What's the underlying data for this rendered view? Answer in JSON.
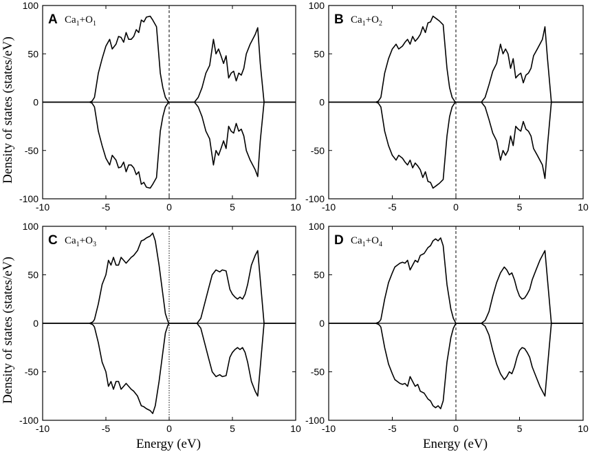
{
  "figure": {
    "ylabel": "Density of states (states/eV)",
    "xlabel": "Energy (eV)"
  },
  "chart_data": [
    {
      "type": "line",
      "panel": "A",
      "label_parts": [
        "Ca",
        "1",
        "+O",
        "1"
      ],
      "xlim": [
        -10,
        10
      ],
      "ylim": [
        -100,
        100
      ],
      "xticks": [
        -10,
        -5,
        0,
        5,
        10
      ],
      "yticks": [
        -100,
        -50,
        0,
        50,
        100
      ],
      "fermi_level": 0,
      "fermi_style": "dashed",
      "series": [
        {
          "x": [
            -10,
            -6.3,
            -6.1,
            -6.0,
            -5.9,
            -5.6,
            -5.3,
            -5.0,
            -4.7,
            -4.5,
            -4.2,
            -4.0,
            -3.8,
            -3.6,
            -3.4,
            -3.2,
            -3.0,
            -2.8,
            -2.6,
            -2.4,
            -2.2,
            -2.0,
            -1.8,
            -1.5,
            -1.3,
            -1.0,
            -0.7,
            -0.5,
            -0.3,
            -0.1,
            0,
            0.5,
            1.0,
            2.0,
            2.3,
            2.6,
            2.9,
            3.2,
            3.5,
            3.7,
            3.9,
            4.1,
            4.3,
            4.5,
            4.7,
            4.9,
            5.1,
            5.3,
            5.5,
            5.7,
            5.9,
            6.1,
            6.4,
            6.8,
            7.0,
            7.2,
            7.5,
            10
          ],
          "y": [
            0,
            0,
            1,
            3,
            5,
            30,
            45,
            58,
            65,
            55,
            60,
            68,
            67,
            62,
            72,
            65,
            65,
            68,
            75,
            72,
            85,
            83,
            88,
            89,
            85,
            78,
            30,
            15,
            5,
            1,
            0,
            0,
            0,
            0,
            5,
            15,
            30,
            38,
            65,
            50,
            55,
            48,
            40,
            48,
            25,
            30,
            32,
            22,
            30,
            28,
            35,
            50,
            60,
            70,
            77,
            40,
            0,
            0
          ]
        },
        {
          "x": [
            -10,
            -6.3,
            -6.1,
            -6.0,
            -5.9,
            -5.6,
            -5.3,
            -5.0,
            -4.7,
            -4.5,
            -4.2,
            -4.0,
            -3.8,
            -3.6,
            -3.4,
            -3.2,
            -3.0,
            -2.8,
            -2.6,
            -2.4,
            -2.2,
            -2.0,
            -1.8,
            -1.5,
            -1.3,
            -1.0,
            -0.7,
            -0.5,
            -0.3,
            -0.1,
            0,
            0.5,
            1.0,
            2.0,
            2.3,
            2.6,
            2.9,
            3.2,
            3.5,
            3.7,
            3.9,
            4.1,
            4.3,
            4.5,
            4.7,
            4.9,
            5.1,
            5.3,
            5.5,
            5.7,
            5.9,
            6.1,
            6.4,
            6.8,
            7.0,
            7.2,
            7.5,
            10
          ],
          "y": [
            0,
            0,
            -1,
            -3,
            -5,
            -30,
            -45,
            -58,
            -65,
            -55,
            -60,
            -68,
            -67,
            -62,
            -72,
            -65,
            -65,
            -68,
            -75,
            -72,
            -85,
            -83,
            -88,
            -89,
            -85,
            -78,
            -30,
            -15,
            -5,
            -1,
            0,
            0,
            0,
            0,
            -5,
            -15,
            -30,
            -38,
            -65,
            -50,
            -55,
            -48,
            -40,
            -48,
            -25,
            -30,
            -32,
            -22,
            -30,
            -28,
            -35,
            -50,
            -60,
            -70,
            -77,
            -40,
            0,
            0
          ]
        }
      ]
    },
    {
      "type": "line",
      "panel": "B",
      "label_parts": [
        "Ca",
        "1",
        "+O",
        "2"
      ],
      "xlim": [
        -10,
        10
      ],
      "ylim": [
        -100,
        100
      ],
      "xticks": [
        -10,
        -5,
        0,
        5,
        10
      ],
      "yticks": [
        -100,
        -50,
        0,
        50,
        100
      ],
      "fermi_level": 0,
      "fermi_style": "dashed",
      "series": [
        {
          "x": [
            -10,
            -6.3,
            -6.1,
            -6.0,
            -5.9,
            -5.6,
            -5.3,
            -5.0,
            -4.7,
            -4.5,
            -4.2,
            -4.0,
            -3.8,
            -3.6,
            -3.4,
            -3.2,
            -3.0,
            -2.8,
            -2.6,
            -2.4,
            -2.2,
            -2.0,
            -1.8,
            -1.5,
            -1.3,
            -1.0,
            -0.7,
            -0.5,
            -0.3,
            -0.1,
            0,
            0.5,
            1.0,
            2.0,
            2.3,
            2.6,
            2.9,
            3.2,
            3.5,
            3.7,
            3.9,
            4.1,
            4.3,
            4.5,
            4.7,
            4.9,
            5.1,
            5.3,
            5.5,
            5.7,
            5.9,
            6.1,
            6.4,
            6.8,
            7.0,
            7.2,
            7.5,
            10
          ],
          "y": [
            0,
            0,
            1,
            3,
            5,
            30,
            45,
            55,
            60,
            55,
            58,
            62,
            65,
            60,
            68,
            63,
            66,
            70,
            78,
            72,
            82,
            83,
            89,
            86,
            84,
            80,
            35,
            15,
            5,
            1,
            0,
            0,
            0,
            0,
            5,
            18,
            32,
            40,
            60,
            50,
            55,
            50,
            35,
            45,
            25,
            28,
            30,
            20,
            28,
            30,
            35,
            48,
            55,
            65,
            78,
            45,
            0,
            0
          ]
        },
        {
          "x": [
            -10,
            -6.3,
            -6.1,
            -6.0,
            -5.9,
            -5.6,
            -5.3,
            -5.0,
            -4.7,
            -4.5,
            -4.2,
            -4.0,
            -3.8,
            -3.6,
            -3.4,
            -3.2,
            -3.0,
            -2.8,
            -2.6,
            -2.4,
            -2.2,
            -2.0,
            -1.8,
            -1.5,
            -1.3,
            -1.0,
            -0.7,
            -0.5,
            -0.3,
            -0.1,
            0,
            0.5,
            1.0,
            2.0,
            2.3,
            2.6,
            2.9,
            3.2,
            3.5,
            3.7,
            3.9,
            4.1,
            4.3,
            4.5,
            4.7,
            4.9,
            5.1,
            5.3,
            5.5,
            5.7,
            5.9,
            6.1,
            6.4,
            6.8,
            7.0,
            7.2,
            7.5,
            10
          ],
          "y": [
            0,
            0,
            -1,
            -3,
            -5,
            -30,
            -45,
            -55,
            -60,
            -55,
            -58,
            -62,
            -65,
            -60,
            -68,
            -63,
            -66,
            -70,
            -78,
            -72,
            -82,
            -83,
            -89,
            -86,
            -84,
            -80,
            -35,
            -15,
            -5,
            -1,
            0,
            0,
            0,
            0,
            -5,
            -18,
            -32,
            -40,
            -60,
            -50,
            -55,
            -50,
            -35,
            -45,
            -25,
            -28,
            -30,
            -20,
            -28,
            -30,
            -35,
            -48,
            -55,
            -65,
            -79,
            -45,
            0,
            0
          ]
        }
      ]
    },
    {
      "type": "line",
      "panel": "C",
      "label_parts": [
        "Ca",
        "1",
        "+O",
        "3"
      ],
      "xlim": [
        -10,
        10
      ],
      "ylim": [
        -100,
        100
      ],
      "xticks": [
        -10,
        -5,
        0,
        5,
        10
      ],
      "yticks": [
        -100,
        -50,
        0,
        50,
        100
      ],
      "fermi_level": 0,
      "fermi_style": "dotted",
      "series": [
        {
          "x": [
            -10,
            -6.3,
            -6.1,
            -6.0,
            -5.9,
            -5.6,
            -5.3,
            -5.0,
            -4.8,
            -4.6,
            -4.4,
            -4.2,
            -4.0,
            -3.8,
            -3.6,
            -3.4,
            -3.2,
            -3.0,
            -2.8,
            -2.5,
            -2.2,
            -2.0,
            -1.8,
            -1.5,
            -1.3,
            -1.1,
            -0.8,
            -0.5,
            -0.3,
            -0.1,
            0,
            0.5,
            1.0,
            2.2,
            2.5,
            2.8,
            3.1,
            3.4,
            3.7,
            4.0,
            4.2,
            4.5,
            4.8,
            5.0,
            5.2,
            5.4,
            5.6,
            5.8,
            6.0,
            6.2,
            6.5,
            6.8,
            7.0,
            7.2,
            7.5,
            10
          ],
          "y": [
            0,
            0,
            1,
            2,
            4,
            20,
            40,
            50,
            65,
            60,
            68,
            60,
            60,
            68,
            65,
            62,
            65,
            68,
            70,
            75,
            85,
            86,
            88,
            90,
            93,
            85,
            60,
            30,
            10,
            2,
            0,
            0,
            0,
            0,
            5,
            20,
            35,
            50,
            55,
            53,
            55,
            54,
            35,
            30,
            27,
            25,
            27,
            25,
            30,
            40,
            60,
            70,
            75,
            45,
            0,
            0
          ]
        },
        {
          "x": [
            -10,
            -6.3,
            -6.1,
            -6.0,
            -5.9,
            -5.6,
            -5.3,
            -5.0,
            -4.8,
            -4.6,
            -4.4,
            -4.2,
            -4.0,
            -3.8,
            -3.6,
            -3.4,
            -3.2,
            -3.0,
            -2.8,
            -2.5,
            -2.2,
            -2.0,
            -1.8,
            -1.5,
            -1.3,
            -1.1,
            -0.8,
            -0.5,
            -0.3,
            -0.1,
            0,
            0.5,
            1.0,
            2.2,
            2.5,
            2.8,
            3.1,
            3.4,
            3.7,
            4.0,
            4.2,
            4.5,
            4.8,
            5.0,
            5.2,
            5.4,
            5.6,
            5.8,
            6.0,
            6.2,
            6.5,
            6.8,
            7.0,
            7.2,
            7.5,
            10
          ],
          "y": [
            0,
            0,
            -1,
            -2,
            -4,
            -20,
            -40,
            -50,
            -65,
            -60,
            -68,
            -60,
            -60,
            -68,
            -65,
            -62,
            -65,
            -68,
            -70,
            -75,
            -85,
            -86,
            -88,
            -90,
            -93,
            -85,
            -60,
            -30,
            -10,
            -2,
            0,
            0,
            0,
            0,
            -5,
            -20,
            -35,
            -50,
            -55,
            -53,
            -55,
            -54,
            -35,
            -30,
            -27,
            -25,
            -27,
            -25,
            -30,
            -40,
            -60,
            -70,
            -75,
            -45,
            0,
            0
          ]
        }
      ]
    },
    {
      "type": "line",
      "panel": "D",
      "label_parts": [
        "Ca",
        "1",
        "+O",
        "4"
      ],
      "xlim": [
        -10,
        10
      ],
      "ylim": [
        -100,
        100
      ],
      "xticks": [
        -10,
        -5,
        0,
        5,
        10
      ],
      "yticks": [
        -100,
        -50,
        0,
        50,
        100
      ],
      "fermi_level": 0,
      "fermi_style": "dashed",
      "series": [
        {
          "x": [
            -10,
            -6.3,
            -6.1,
            -6.0,
            -5.9,
            -5.6,
            -5.3,
            -5.0,
            -4.8,
            -4.6,
            -4.4,
            -4.2,
            -4.0,
            -3.8,
            -3.6,
            -3.4,
            -3.2,
            -3.0,
            -2.8,
            -2.5,
            -2.2,
            -2.0,
            -1.8,
            -1.6,
            -1.4,
            -1.2,
            -1.0,
            -0.7,
            -0.4,
            -0.2,
            0,
            0.5,
            1.0,
            2.0,
            2.3,
            2.6,
            2.9,
            3.2,
            3.5,
            3.8,
            4.0,
            4.2,
            4.4,
            4.6,
            4.8,
            5.0,
            5.2,
            5.4,
            5.6,
            5.8,
            6.0,
            6.3,
            6.6,
            7.0,
            7.2,
            7.5,
            10
          ],
          "y": [
            0,
            0,
            1,
            2,
            4,
            25,
            42,
            52,
            58,
            60,
            62,
            63,
            62,
            65,
            55,
            60,
            65,
            63,
            70,
            72,
            78,
            80,
            85,
            87,
            85,
            88,
            80,
            40,
            15,
            5,
            0,
            0,
            0,
            0,
            3,
            12,
            28,
            42,
            52,
            58,
            55,
            50,
            52,
            45,
            35,
            28,
            25,
            26,
            30,
            35,
            45,
            55,
            65,
            75,
            45,
            0,
            0
          ]
        },
        {
          "x": [
            -10,
            -6.3,
            -6.1,
            -6.0,
            -5.9,
            -5.6,
            -5.3,
            -5.0,
            -4.8,
            -4.6,
            -4.4,
            -4.2,
            -4.0,
            -3.8,
            -3.6,
            -3.4,
            -3.2,
            -3.0,
            -2.8,
            -2.5,
            -2.2,
            -2.0,
            -1.8,
            -1.6,
            -1.4,
            -1.2,
            -1.0,
            -0.7,
            -0.4,
            -0.2,
            0,
            0.5,
            1.0,
            2.0,
            2.3,
            2.6,
            2.9,
            3.2,
            3.5,
            3.8,
            4.0,
            4.2,
            4.4,
            4.6,
            4.8,
            5.0,
            5.2,
            5.4,
            5.6,
            5.8,
            6.0,
            6.3,
            6.6,
            7.0,
            7.2,
            7.5,
            10
          ],
          "y": [
            0,
            0,
            -1,
            -2,
            -4,
            -25,
            -42,
            -52,
            -58,
            -60,
            -62,
            -63,
            -62,
            -65,
            -55,
            -60,
            -65,
            -63,
            -70,
            -72,
            -78,
            -80,
            -85,
            -87,
            -85,
            -88,
            -80,
            -40,
            -15,
            -5,
            0,
            0,
            0,
            0,
            -3,
            -12,
            -28,
            -42,
            -52,
            -58,
            -55,
            -50,
            -52,
            -45,
            -35,
            -28,
            -25,
            -26,
            -30,
            -35,
            -45,
            -55,
            -65,
            -75,
            -45,
            0,
            0
          ]
        }
      ]
    }
  ]
}
